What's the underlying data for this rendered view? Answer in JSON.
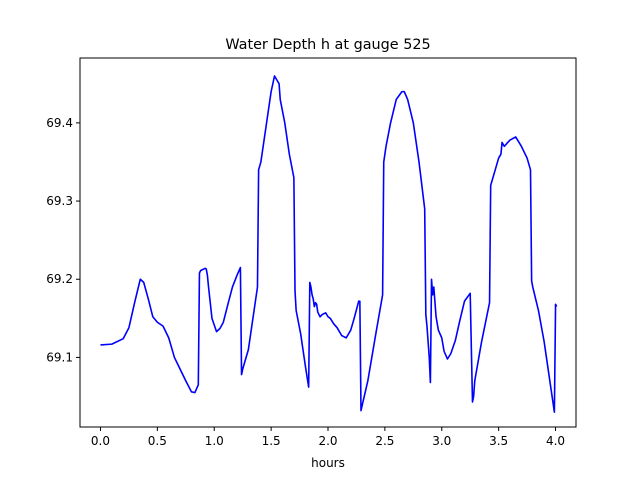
{
  "chart_data": {
    "type": "line",
    "title": "Water Depth h at gauge 525",
    "xlabel": "hours",
    "ylabel": "",
    "xlim": [
      -0.18,
      4.18
    ],
    "ylim": [
      69.011,
      69.483
    ],
    "xticks": [
      0.0,
      0.5,
      1.0,
      1.5,
      2.0,
      2.5,
      3.0,
      3.5,
      4.0
    ],
    "xtick_labels": [
      "0.0",
      "0.5",
      "1.0",
      "1.5",
      "2.0",
      "2.5",
      "3.0",
      "3.5",
      "4.0"
    ],
    "yticks": [
      69.1,
      69.2,
      69.3,
      69.4
    ],
    "ytick_labels": [
      "69.1",
      "69.2",
      "69.3",
      "69.4"
    ],
    "grid": false,
    "legend": "none",
    "series": [
      {
        "color": "#0000ff",
        "x": [
          0.0,
          0.1,
          0.2,
          0.25,
          0.3,
          0.35,
          0.38,
          0.42,
          0.46,
          0.5,
          0.55,
          0.6,
          0.65,
          0.7,
          0.75,
          0.8,
          0.83,
          0.86,
          0.87,
          0.88,
          0.92,
          0.93,
          0.94,
          0.95,
          0.98,
          1.02,
          1.05,
          1.08,
          1.12,
          1.16,
          1.2,
          1.23,
          1.24,
          1.25,
          1.3,
          1.35,
          1.38,
          1.39,
          1.41,
          1.45,
          1.5,
          1.53,
          1.55,
          1.57,
          1.58,
          1.62,
          1.66,
          1.7,
          1.71,
          1.72,
          1.76,
          1.8,
          1.83,
          1.84,
          1.85,
          1.86,
          1.87,
          1.88,
          1.89,
          1.9,
          1.91,
          1.93,
          1.95,
          1.98,
          2.0,
          2.02,
          2.05,
          2.08,
          2.12,
          2.16,
          2.2,
          2.23,
          2.27,
          2.28,
          2.29,
          2.35,
          2.42,
          2.48,
          2.49,
          2.51,
          2.55,
          2.6,
          2.65,
          2.67,
          2.7,
          2.75,
          2.8,
          2.85,
          2.86,
          2.87,
          2.89,
          2.9,
          2.91,
          2.92,
          2.93,
          2.95,
          2.97,
          3.0,
          3.02,
          3.05,
          3.08,
          3.12,
          3.16,
          3.2,
          3.25,
          3.27,
          3.28,
          3.29,
          3.35,
          3.42,
          3.43,
          3.44,
          3.47,
          3.5,
          3.52,
          3.53,
          3.55,
          3.58,
          3.6,
          3.65,
          3.7,
          3.75,
          3.78,
          3.79,
          3.8,
          3.85,
          3.9,
          3.95,
          3.99,
          4.0,
          4.0,
          4.01
        ],
        "y": [
          69.116,
          69.117,
          69.124,
          69.138,
          69.17,
          69.2,
          69.196,
          69.175,
          69.152,
          69.145,
          69.14,
          69.125,
          69.1,
          69.085,
          69.07,
          69.056,
          69.055,
          69.065,
          69.208,
          69.211,
          69.214,
          69.213,
          69.205,
          69.19,
          69.15,
          69.133,
          69.137,
          69.145,
          69.168,
          69.19,
          69.205,
          69.215,
          69.078,
          69.085,
          69.11,
          69.16,
          69.19,
          69.34,
          69.35,
          69.39,
          69.44,
          69.46,
          69.455,
          69.45,
          69.43,
          69.4,
          69.36,
          69.33,
          69.185,
          69.16,
          69.13,
          69.09,
          69.062,
          69.196,
          69.19,
          69.18,
          69.175,
          69.165,
          69.17,
          69.168,
          69.158,
          69.152,
          69.155,
          69.157,
          69.152,
          69.15,
          69.143,
          69.138,
          69.128,
          69.125,
          69.135,
          69.15,
          69.172,
          69.172,
          69.032,
          69.07,
          69.13,
          69.18,
          69.35,
          69.37,
          69.4,
          69.43,
          69.44,
          69.44,
          69.43,
          69.4,
          69.35,
          69.29,
          69.155,
          69.14,
          69.1,
          69.068,
          69.2,
          69.18,
          69.19,
          69.152,
          69.135,
          69.125,
          69.108,
          69.098,
          69.105,
          69.122,
          69.148,
          69.172,
          69.182,
          69.043,
          69.05,
          69.07,
          69.12,
          69.17,
          69.32,
          69.325,
          69.34,
          69.355,
          69.36,
          69.375,
          69.37,
          69.375,
          69.378,
          69.382,
          69.37,
          69.355,
          69.34,
          69.198,
          69.19,
          69.16,
          69.12,
          69.07,
          69.03,
          69.162,
          69.168,
          69.165
        ]
      }
    ]
  }
}
